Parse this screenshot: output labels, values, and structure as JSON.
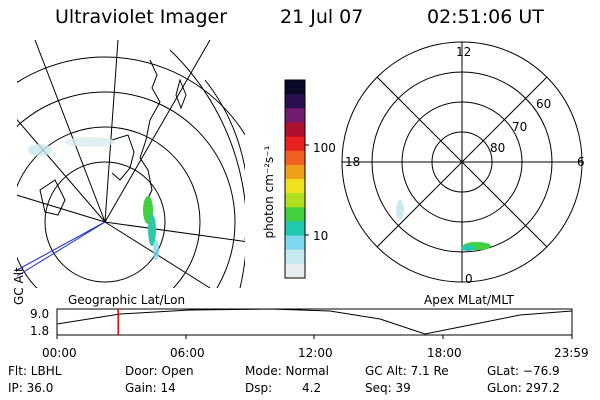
{
  "header": {
    "title": "Ultraviolet Imager",
    "date": "21 Jul 07",
    "time": "02:51:06 UT"
  },
  "left_panel": {
    "label": "Geographic Lat/Lon"
  },
  "right_panel": {
    "label": "Apex MLat/MLT",
    "mlt_labels": [
      "12",
      "18",
      "6",
      "0"
    ],
    "mlat_labels": [
      "60",
      "70",
      "80"
    ]
  },
  "colorbar": {
    "title": "photon cm⁻²s⁻¹",
    "tick_labels": [
      "100",
      "10"
    ],
    "colors": [
      "#0a0a28",
      "#2a1050",
      "#701c70",
      "#b01030",
      "#e82020",
      "#f06020",
      "#f0a018",
      "#f0e020",
      "#b0e020",
      "#40d040",
      "#20c8b0",
      "#80d8f0",
      "#c8e8f0",
      "#e8eef0"
    ]
  },
  "gc_alt_plot": {
    "ylabel": "GC Alt",
    "y_ticks": [
      "9.0",
      "1.8"
    ],
    "x_ticks": [
      "00:00",
      "06:00",
      "12:00",
      "18:00",
      "23:59"
    ],
    "current_time_hours": 2.85,
    "marker_color": "#e00000"
  },
  "status": {
    "filter": "Flt: LBHL",
    "ip": "IP: 36.0",
    "door": "Door: Open",
    "gain": "Gain: 14",
    "mode": "Mode: Normal",
    "dsp_label": "Dsp:",
    "dsp_value": "4.2",
    "gc_alt": "GC Alt: 7.1 Re",
    "seq": "Seq: 39",
    "glat": "GLat: −76.9",
    "glon": "GLon: 297.2"
  }
}
